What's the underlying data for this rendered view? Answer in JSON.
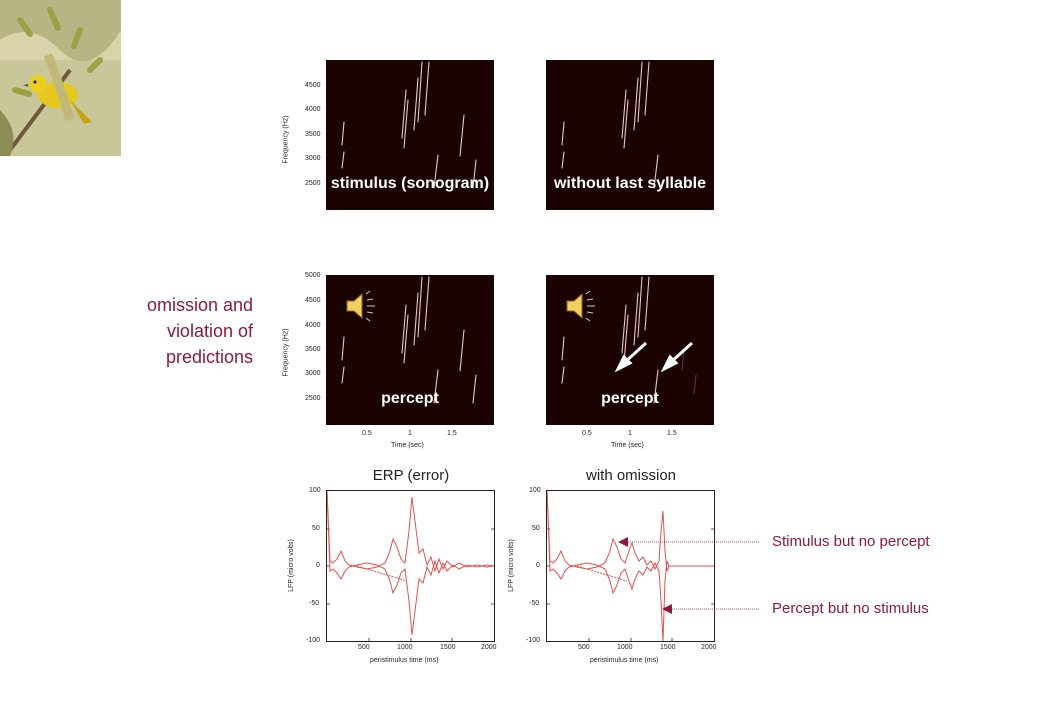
{
  "photo": {
    "subject": "yellow-warbler-bird"
  },
  "side_text": {
    "lines": [
      "omission and",
      "violation of",
      "predictions"
    ]
  },
  "spectrograms": {
    "top_left_label": "stimulus (sonogram)",
    "top_right_label": "without last syllable",
    "bottom_left_label": "percept",
    "bottom_right_label": "percept",
    "top_yaxis_label": "Frequency (Hz)",
    "top_yticks": [
      "4500",
      "4000",
      "3500",
      "3000",
      "2500"
    ],
    "bottom_yaxis_label": "Frequency (Hz)",
    "bottom_yticks": [
      "5000",
      "4500",
      "4000",
      "3500",
      "3000",
      "2500"
    ],
    "xticks": [
      "0.5",
      "1",
      "1.5"
    ],
    "xaxis_label": "Time (sec)",
    "speaker_icon": "speaker-icon"
  },
  "erp": {
    "left_title": "ERP (error)",
    "right_title": "with omission",
    "yaxis_label": "LFP (micro volts)",
    "yticks": [
      "100",
      "50",
      "0",
      "-50",
      "-100"
    ],
    "xticks": [
      "500",
      "1000",
      "1500",
      "2000"
    ],
    "xaxis_label": "peristimulus time (ms)",
    "line_color": "#e05050"
  },
  "annotations": {
    "stimulus_no_percept": "Stimulus but no percept",
    "percept_no_stimulus": "Percept but no stimulus",
    "color": "#8b1a3c"
  }
}
